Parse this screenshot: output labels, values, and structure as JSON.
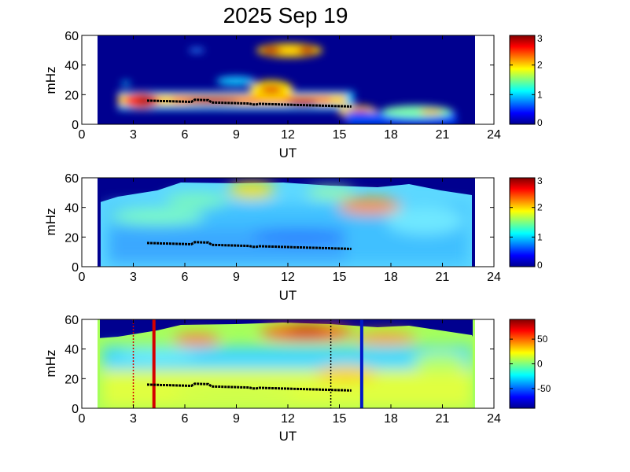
{
  "title": "2025 Sep 19",
  "colors": {
    "background": "#00008f",
    "trace": "#000000",
    "red_marker": "#d40000",
    "blue_marker": "#0018c8"
  },
  "chart_data": [
    {
      "type": "heatmap",
      "xlabel": "UT",
      "ylabel": "mHz",
      "xlim": [
        0,
        24
      ],
      "ylim": [
        0,
        60
      ],
      "xticks": [
        "0",
        "3",
        "6",
        "9",
        "12",
        "15",
        "18",
        "21",
        "24"
      ],
      "yticks": [
        "0",
        "20",
        "40",
        "60"
      ],
      "data_range_ut": [
        1,
        23
      ],
      "colorbar": {
        "ticks": [
          "0",
          "1",
          "2",
          "3"
        ],
        "range": [
          0,
          3
        ]
      },
      "trace": {
        "start_ut": 3.8,
        "end_ut": 15.7,
        "start_mhz": 16,
        "end_mhz": 12
      }
    },
    {
      "type": "heatmap",
      "xlabel": "UT",
      "ylabel": "mHz",
      "xlim": [
        0,
        24
      ],
      "ylim": [
        0,
        60
      ],
      "xticks": [
        "0",
        "3",
        "6",
        "9",
        "12",
        "15",
        "18",
        "21",
        "24"
      ],
      "yticks": [
        "0",
        "20",
        "40",
        "60"
      ],
      "data_range_ut": [
        1,
        23
      ],
      "colorbar": {
        "ticks": [
          "0",
          "1",
          "2",
          "3"
        ],
        "range": [
          0,
          3
        ]
      },
      "trace": {
        "start_ut": 3.8,
        "end_ut": 15.7,
        "start_mhz": 16,
        "end_mhz": 12
      }
    },
    {
      "type": "heatmap",
      "xlabel": "UT",
      "ylabel": "mHz",
      "xlim": [
        0,
        24
      ],
      "ylim": [
        0,
        60
      ],
      "xticks": [
        "0",
        "3",
        "6",
        "9",
        "12",
        "15",
        "18",
        "21",
        "24"
      ],
      "yticks": [
        "0",
        "20",
        "40",
        "60"
      ],
      "data_range_ut": [
        1,
        23
      ],
      "colorbar": {
        "ticks": [
          "-50",
          "0",
          "50"
        ],
        "range": [
          -90,
          90
        ]
      },
      "trace": {
        "start_ut": 3.8,
        "end_ut": 15.7,
        "start_mhz": 16,
        "end_mhz": 12
      },
      "markers": [
        {
          "ut": 3.0,
          "style": "dotted",
          "color": "red"
        },
        {
          "ut": 4.2,
          "style": "solid",
          "color": "red"
        },
        {
          "ut": 14.5,
          "style": "dotted",
          "color": "black"
        },
        {
          "ut": 16.3,
          "style": "solid",
          "color": "blue"
        }
      ]
    }
  ]
}
